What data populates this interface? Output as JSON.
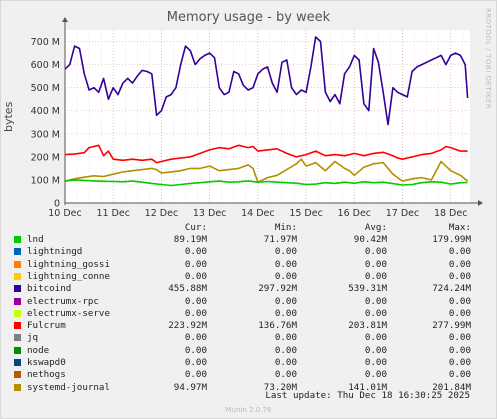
{
  "title": "Memory usage - by week",
  "side_label": "RRDTOOL / TOBI OETIKER",
  "footer": "Munin 2.0.76",
  "last_update": "Last update: Thu Dec 18 16:30:25 2025",
  "legend": {
    "headers": {
      "cur": "Cur:",
      "min": "Min:",
      "avg": "Avg:",
      "max": "Max:"
    },
    "rows": [
      {
        "name": "lnd",
        "color": "#00cc00",
        "cur": "89.19M",
        "min": "71.97M",
        "avg": "90.42M",
        "max": "179.99M"
      },
      {
        "name": "lightningd",
        "color": "#0066b3",
        "cur": "0.00",
        "min": "0.00",
        "avg": "0.00",
        "max": "0.00"
      },
      {
        "name": "lightning_gossi",
        "color": "#ff8000",
        "cur": "0.00",
        "min": "0.00",
        "avg": "0.00",
        "max": "0.00"
      },
      {
        "name": "lightning_conne",
        "color": "#ffcc00",
        "cur": "0.00",
        "min": "0.00",
        "avg": "0.00",
        "max": "0.00"
      },
      {
        "name": "bitcoind",
        "color": "#330099",
        "cur": "455.88M",
        "min": "297.92M",
        "avg": "539.31M",
        "max": "724.24M"
      },
      {
        "name": "electrumx-rpc",
        "color": "#990099",
        "cur": "0.00",
        "min": "0.00",
        "avg": "0.00",
        "max": "0.00"
      },
      {
        "name": "electrumx-serve",
        "color": "#ccff00",
        "cur": "0.00",
        "min": "0.00",
        "avg": "0.00",
        "max": "0.00"
      },
      {
        "name": "Fulcrum",
        "color": "#ff0000",
        "cur": "223.92M",
        "min": "136.76M",
        "avg": "203.81M",
        "max": "277.99M"
      },
      {
        "name": "jq",
        "color": "#808080",
        "cur": "0.00",
        "min": "0.00",
        "avg": "0.00",
        "max": "0.00"
      },
      {
        "name": "node",
        "color": "#008f00",
        "cur": "0.00",
        "min": "0.00",
        "avg": "0.00",
        "max": "0.00"
      },
      {
        "name": "kswapd0",
        "color": "#00487d",
        "cur": "0.00",
        "min": "0.00",
        "avg": "0.00",
        "max": "0.00"
      },
      {
        "name": "nethogs",
        "color": "#b35a00",
        "cur": "0.00",
        "min": "0.00",
        "avg": "0.00",
        "max": "0.00"
      },
      {
        "name": "systemd-journal",
        "color": "#b38f00",
        "cur": "94.97M",
        "min": "73.20M",
        "avg": "141.01M",
        "max": "201.84M"
      }
    ]
  },
  "chart_data": {
    "type": "line",
    "title": "Memory usage - by week",
    "ylabel": "bytes",
    "ylim": [
      0,
      750
    ],
    "yunit": "M",
    "yticks": [
      0,
      100,
      200,
      300,
      400,
      500,
      600,
      700
    ],
    "ytick_labels": [
      "0",
      "100 M",
      "200 M",
      "300 M",
      "400 M",
      "500 M",
      "600 M",
      "700 M"
    ],
    "xlim": [
      10,
      18.4
    ],
    "xticks": [
      10,
      11,
      12,
      13,
      14,
      15,
      16,
      17,
      18
    ],
    "xtick_labels": [
      "10 Dec",
      "11 Dec",
      "12 Dec",
      "13 Dec",
      "14 Dec",
      "15 Dec",
      "16 Dec",
      "17 Dec",
      "18 Dec"
    ],
    "grid": true,
    "series": [
      {
        "name": "bitcoind",
        "color": "#330099",
        "x": [
          10.0,
          10.1,
          10.2,
          10.3,
          10.4,
          10.5,
          10.6,
          10.7,
          10.8,
          10.9,
          11.0,
          11.1,
          11.2,
          11.3,
          11.4,
          11.5,
          11.6,
          11.7,
          11.8,
          11.9,
          12.0,
          12.1,
          12.2,
          12.3,
          12.4,
          12.5,
          12.6,
          12.7,
          12.8,
          12.9,
          13.0,
          13.1,
          13.2,
          13.3,
          13.4,
          13.5,
          13.6,
          13.7,
          13.8,
          13.9,
          14.0,
          14.1,
          14.2,
          14.3,
          14.4,
          14.5,
          14.6,
          14.7,
          14.8,
          14.9,
          15.0,
          15.1,
          15.2,
          15.3,
          15.4,
          15.5,
          15.6,
          15.7,
          15.8,
          15.9,
          16.0,
          16.1,
          16.2,
          16.3,
          16.4,
          16.5,
          16.6,
          16.7,
          16.8,
          16.9,
          17.0,
          17.1,
          17.2,
          17.3,
          17.4,
          17.5,
          17.6,
          17.7,
          17.8,
          17.9,
          18.0,
          18.1,
          18.2,
          18.3,
          18.35
        ],
        "y": [
          580,
          600,
          680,
          670,
          560,
          490,
          500,
          480,
          540,
          450,
          500,
          470,
          520,
          540,
          520,
          550,
          575,
          570,
          560,
          380,
          400,
          460,
          470,
          500,
          600,
          680,
          660,
          600,
          625,
          640,
          650,
          630,
          500,
          470,
          480,
          570,
          560,
          510,
          490,
          500,
          560,
          580,
          590,
          520,
          480,
          610,
          620,
          500,
          470,
          490,
          480,
          590,
          720,
          700,
          480,
          440,
          470,
          430,
          560,
          590,
          640,
          620,
          430,
          400,
          670,
          610,
          480,
          340,
          500,
          480,
          470,
          460,
          570,
          590,
          600,
          610,
          620,
          630,
          640,
          600,
          640,
          650,
          640,
          600,
          455
        ]
      },
      {
        "name": "Fulcrum",
        "color": "#ff0000",
        "x": [
          10.0,
          10.2,
          10.4,
          10.5,
          10.6,
          10.7,
          10.8,
          10.9,
          11.0,
          11.2,
          11.4,
          11.6,
          11.8,
          11.9,
          12.0,
          12.2,
          12.4,
          12.6,
          12.8,
          13.0,
          13.2,
          13.4,
          13.6,
          13.8,
          13.9,
          14.0,
          14.2,
          14.4,
          14.6,
          14.8,
          15.0,
          15.2,
          15.4,
          15.6,
          15.8,
          15.9,
          16.0,
          16.2,
          16.4,
          16.6,
          16.8,
          16.9,
          17.0,
          17.2,
          17.4,
          17.6,
          17.8,
          17.9,
          18.0,
          18.2,
          18.35
        ],
        "y": [
          210,
          212,
          218,
          240,
          245,
          250,
          205,
          225,
          190,
          185,
          190,
          185,
          190,
          175,
          180,
          190,
          195,
          200,
          215,
          230,
          240,
          235,
          250,
          240,
          245,
          225,
          230,
          235,
          215,
          200,
          210,
          225,
          205,
          210,
          205,
          210,
          215,
          205,
          215,
          220,
          205,
          195,
          190,
          200,
          210,
          215,
          230,
          245,
          240,
          225,
          225
        ]
      },
      {
        "name": "systemd-journal",
        "color": "#b38f00",
        "x": [
          10.0,
          10.2,
          10.4,
          10.6,
          10.8,
          11.0,
          11.2,
          11.4,
          11.6,
          11.8,
          11.9,
          12.0,
          12.2,
          12.4,
          12.6,
          12.8,
          13.0,
          13.2,
          13.4,
          13.6,
          13.8,
          13.9,
          14.0,
          14.2,
          14.4,
          14.6,
          14.8,
          14.9,
          15.0,
          15.2,
          15.4,
          15.6,
          15.8,
          15.9,
          16.0,
          16.2,
          16.4,
          16.6,
          16.8,
          16.9,
          17.0,
          17.2,
          17.4,
          17.6,
          17.8,
          17.9,
          18.0,
          18.2,
          18.35
        ],
        "y": [
          95,
          105,
          112,
          118,
          115,
          125,
          135,
          140,
          145,
          150,
          145,
          130,
          135,
          140,
          150,
          150,
          160,
          140,
          145,
          150,
          165,
          150,
          90,
          110,
          120,
          145,
          170,
          190,
          160,
          175,
          140,
          180,
          150,
          140,
          120,
          155,
          170,
          175,
          125,
          110,
          95,
          105,
          110,
          100,
          180,
          160,
          140,
          120,
          95
        ]
      },
      {
        "name": "lnd",
        "color": "#00cc00",
        "x": [
          10.0,
          10.2,
          10.4,
          10.6,
          10.8,
          11.0,
          11.2,
          11.4,
          11.6,
          11.8,
          12.0,
          12.2,
          12.4,
          12.6,
          12.8,
          13.0,
          13.2,
          13.4,
          13.6,
          13.8,
          14.0,
          14.2,
          14.4,
          14.6,
          14.8,
          15.0,
          15.2,
          15.4,
          15.6,
          15.8,
          16.0,
          16.2,
          16.4,
          16.6,
          16.8,
          17.0,
          17.2,
          17.4,
          17.6,
          17.8,
          18.0,
          18.2,
          18.35
        ],
        "y": [
          95,
          100,
          98,
          96,
          94,
          93,
          92,
          95,
          90,
          85,
          80,
          76,
          80,
          85,
          88,
          92,
          95,
          90,
          92,
          96,
          90,
          93,
          90,
          88,
          86,
          80,
          82,
          88,
          85,
          90,
          86,
          92,
          88,
          90,
          84,
          78,
          80,
          88,
          92,
          90,
          82,
          88,
          89
        ]
      }
    ]
  }
}
